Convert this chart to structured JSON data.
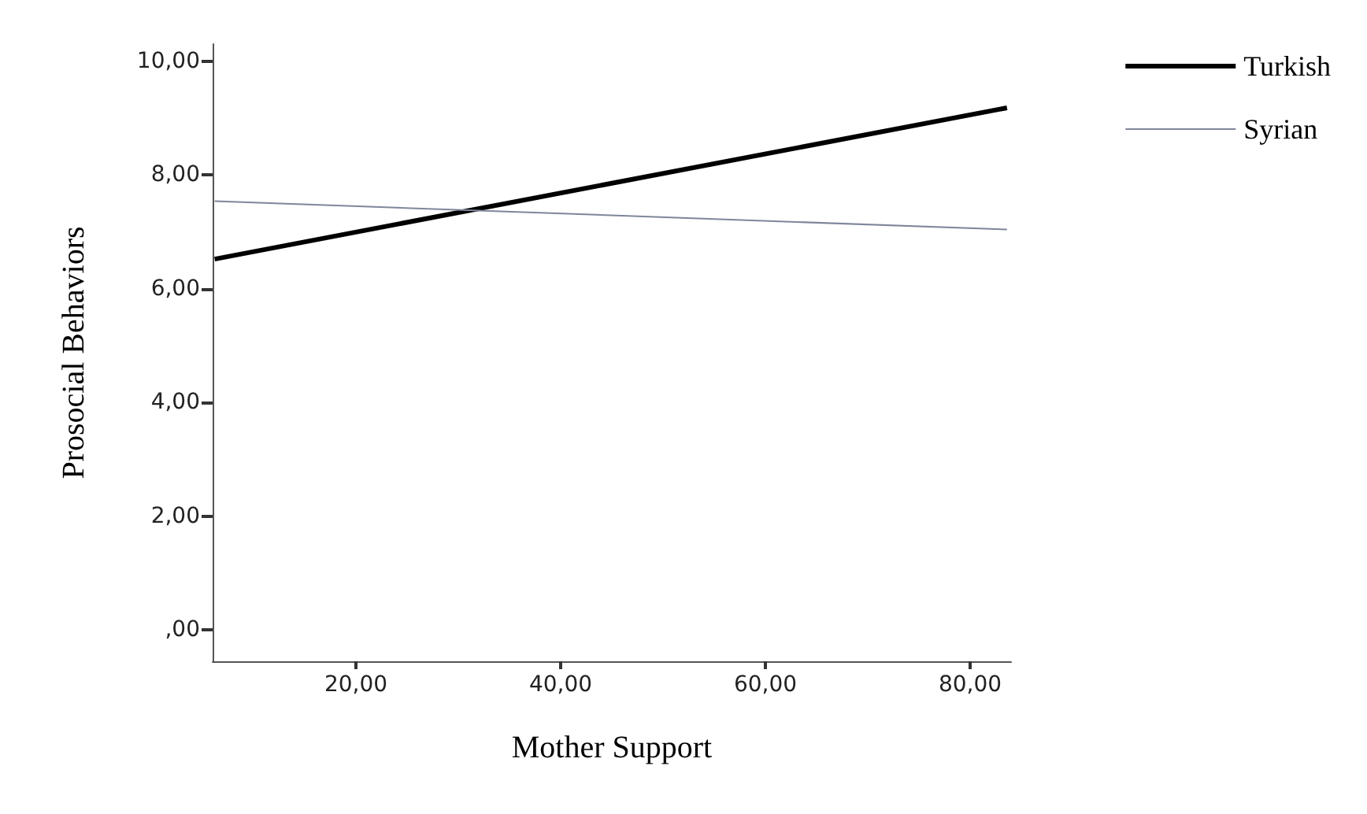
{
  "chart_data": {
    "type": "line",
    "xlabel": "Mother Support",
    "ylabel": "Prosocial Behaviors",
    "xlim": [
      6,
      84
    ],
    "ylim": [
      -0.55,
      10.3
    ],
    "xticks": [
      {
        "value": 20,
        "label": "20,00"
      },
      {
        "value": 40,
        "label": "40,00"
      },
      {
        "value": 60,
        "label": "60,00"
      },
      {
        "value": 80,
        "label": "80,00"
      }
    ],
    "yticks": [
      {
        "value": 0,
        "label": ",00"
      },
      {
        "value": 2,
        "label": "2,00"
      },
      {
        "value": 4,
        "label": "4,00"
      },
      {
        "value": 6,
        "label": "6,00"
      },
      {
        "value": 8,
        "label": "8,00"
      },
      {
        "value": 10,
        "label": "10,00"
      }
    ],
    "x": [
      6.2,
      83.6
    ],
    "series": [
      {
        "name": "Turkish",
        "color": "#000000",
        "values": [
          6.52,
          9.18
        ]
      },
      {
        "name": "Syrian",
        "color": "#7f869b",
        "values": [
          7.54,
          7.04
        ]
      }
    ],
    "grid": false,
    "legend": "top right",
    "marker": "none",
    "line_style": "solid"
  }
}
